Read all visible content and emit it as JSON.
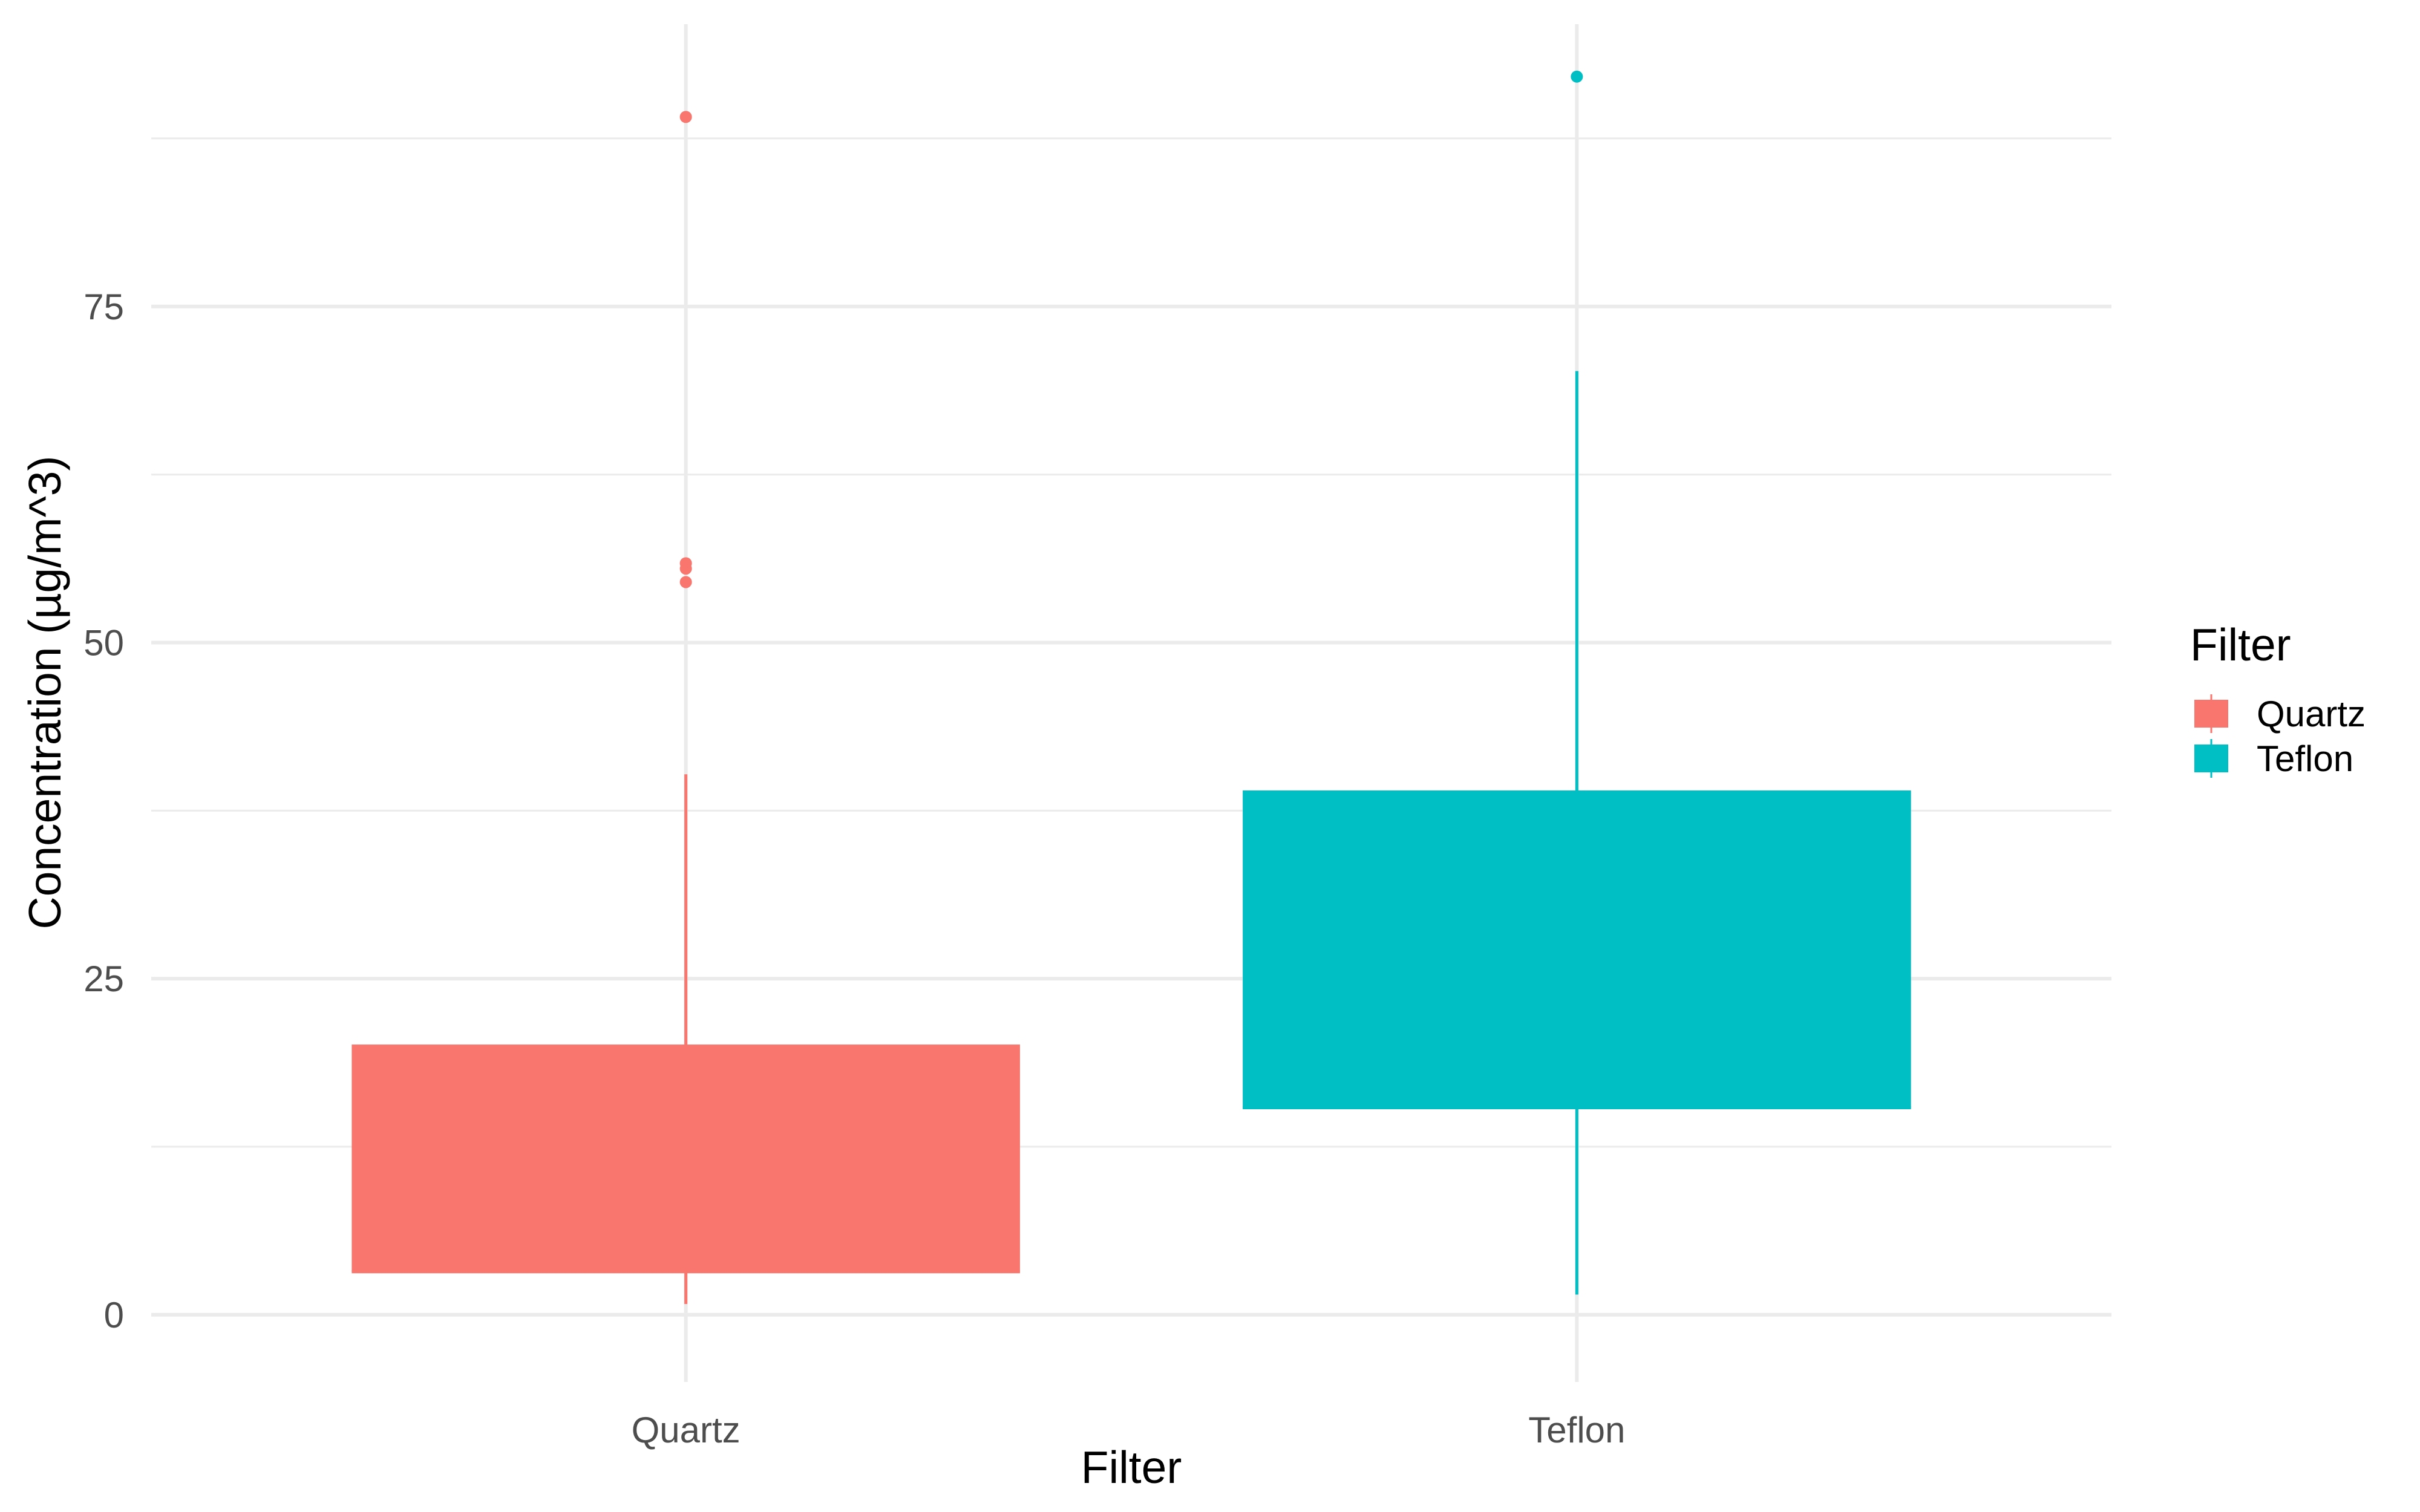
{
  "chart_data": {
    "type": "boxplot",
    "title": "",
    "xlabel": "Filter",
    "ylabel": "Concentration (µg/m^3)",
    "ylim": [
      -5,
      96
    ],
    "y_ticks": [
      0,
      25,
      50,
      75
    ],
    "y_tick_labels": [
      "0",
      "25",
      "50",
      "75"
    ],
    "y_minor_ticks": [
      12.5,
      37.5,
      62.5,
      87.5
    ],
    "categories": [
      "Quartz",
      "Teflon"
    ],
    "grid": true,
    "legend": {
      "title": "Filter",
      "position": "right",
      "entries": [
        {
          "label": "Quartz",
          "color": "#F8766D"
        },
        {
          "label": "Teflon",
          "color": "#00BFC4"
        }
      ]
    },
    "boxes": [
      {
        "category": "Quartz",
        "color": "#F8766D",
        "whisker_low": 0.8,
        "q1": 3.2,
        "median": 3.2,
        "q3": 20.1,
        "whisker_high": 40.2,
        "outliers": [
          54.5,
          55.5,
          55.9,
          89.1
        ]
      },
      {
        "category": "Teflon",
        "color": "#00BFC4",
        "whisker_low": 1.5,
        "q1": 15.4,
        "median": 15.4,
        "q3": 39.0,
        "whisker_high": 70.2,
        "outliers": [
          92.1
        ]
      }
    ]
  }
}
